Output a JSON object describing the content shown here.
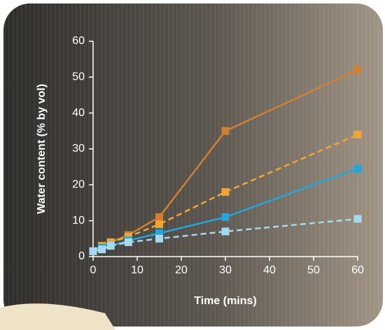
{
  "chart_data": {
    "type": "line",
    "x_label": "Time (mins)",
    "y_label": "Water content (% by vol)",
    "x": [
      0,
      2,
      4,
      8,
      15,
      30,
      60
    ],
    "series": [
      {
        "color": "#d08030",
        "dashed": false,
        "values": [
          1.5,
          3,
          4,
          6,
          11,
          35,
          52
        ]
      },
      {
        "color": "#f2a630",
        "dashed": true,
        "values": [
          1.5,
          3,
          4,
          5.5,
          9,
          18,
          34
        ]
      },
      {
        "color": "#1ea8e0",
        "dashed": false,
        "values": [
          1.5,
          2.5,
          3,
          4.5,
          6.5,
          11,
          24.5
        ]
      },
      {
        "color": "#a6d9ef",
        "dashed": true,
        "values": [
          1.5,
          2,
          3,
          4,
          5,
          7,
          10.5
        ]
      }
    ],
    "xlim": [
      0,
      60
    ],
    "ylim": [
      0,
      60
    ],
    "xticks": [
      0,
      10,
      20,
      30,
      40,
      50,
      60
    ],
    "yticks": [
      0,
      10,
      20,
      30,
      40,
      50,
      60
    ]
  }
}
